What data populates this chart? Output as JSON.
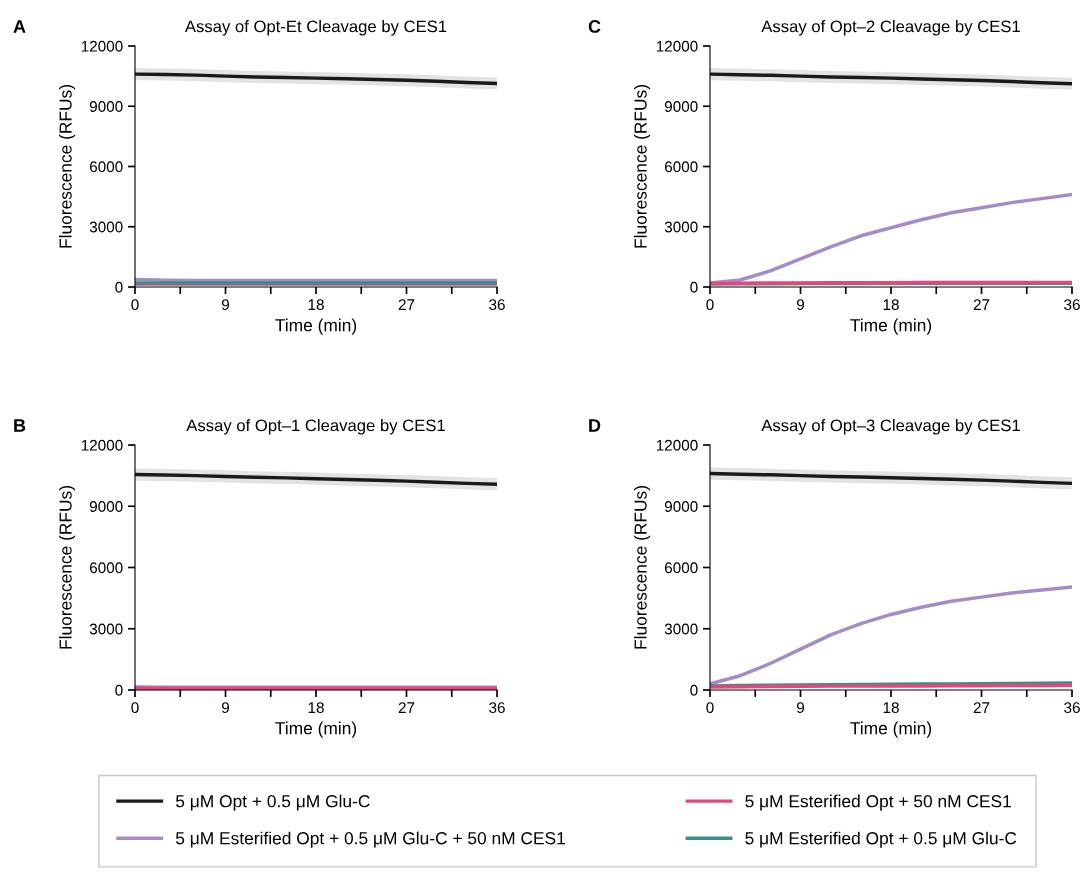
{
  "chart_data": [
    {
      "type": "line",
      "title": "Assay of Opt-Et Cleavage by CES1",
      "annotations": [
        "A"
      ],
      "xlabel": "Time (min)",
      "ylabel": "Fluorescence (RFUs)",
      "x": [
        0,
        3,
        6,
        9,
        12,
        15,
        18,
        21,
        24,
        27,
        30,
        33,
        36
      ],
      "xlim": [
        0,
        36
      ],
      "xticks": [
        0,
        {
          "value": 4.5,
          "label": null
        },
        9,
        {
          "value": 13.5,
          "label": null
        },
        18,
        {
          "value": 22.5,
          "label": null
        },
        27,
        {
          "value": 31.5,
          "label": null
        },
        36
      ],
      "ylim": [
        0,
        12000
      ],
      "yticks": [
        0,
        3000,
        6000,
        9000,
        12000
      ],
      "legend": "bottom",
      "series": [
        {
          "name": "5 μM Opt + 0.5 μM Glu-C",
          "color": "#1a1a1a",
          "values": [
            10600,
            10580,
            10550,
            10500,
            10460,
            10430,
            10400,
            10370,
            10330,
            10290,
            10240,
            10180,
            10130
          ],
          "lower": [
            10300,
            10280,
            10250,
            10200,
            10160,
            10130,
            10100,
            10070,
            10030,
            9990,
            9940,
            9880,
            9830
          ],
          "upper": [
            10900,
            10880,
            10850,
            10800,
            10760,
            10730,
            10700,
            10670,
            10630,
            10590,
            10540,
            10480,
            10430
          ]
        },
        {
          "name": "5 μM Esterified Opt + 0.5 μM Glu-C + 50 nM CES1",
          "color": "#a58bc8",
          "values": [
            380,
            340,
            330,
            330,
            330,
            330,
            330,
            330,
            330,
            330,
            330,
            330,
            330
          ]
        },
        {
          "name": "5 μM Esterified Opt + 50 nM CES1",
          "color": "#e8457f",
          "values": [
            150,
            150,
            150,
            150,
            150,
            150,
            150,
            150,
            150,
            150,
            150,
            150,
            150
          ]
        },
        {
          "name": "5 μM Esterified Opt + 0.5 μM Glu-C",
          "color": "#3a8f87",
          "values": [
            200,
            200,
            200,
            200,
            200,
            200,
            200,
            200,
            200,
            200,
            200,
            200,
            200
          ]
        }
      ]
    },
    {
      "type": "line",
      "title": "Assay of Opt–2 Cleavage by CES1",
      "annotations": [
        "C"
      ],
      "xlabel": "Time (min)",
      "ylabel": "Fluorescence (RFUs)",
      "x": [
        0,
        3,
        6,
        9,
        12,
        15,
        18,
        21,
        24,
        27,
        30,
        33,
        36
      ],
      "xlim": [
        0,
        36
      ],
      "xticks": [
        0,
        {
          "value": 4.5,
          "label": null
        },
        9,
        {
          "value": 13.5,
          "label": null
        },
        18,
        {
          "value": 22.5,
          "label": null
        },
        27,
        {
          "value": 31.5,
          "label": null
        },
        36
      ],
      "ylim": [
        0,
        12000
      ],
      "yticks": [
        0,
        3000,
        6000,
        9000,
        12000
      ],
      "series": [
        {
          "color": "#1a1a1a",
          "values": [
            10600,
            10570,
            10540,
            10500,
            10460,
            10430,
            10400,
            10360,
            10320,
            10280,
            10230,
            10170,
            10120
          ],
          "lower": [
            10300,
            10270,
            10240,
            10200,
            10160,
            10130,
            10100,
            10060,
            10020,
            9980,
            9930,
            9870,
            9820
          ],
          "upper": [
            10900,
            10870,
            10840,
            10800,
            10760,
            10730,
            10700,
            10660,
            10620,
            10580,
            10530,
            10470,
            10420
          ]
        },
        {
          "color": "#a58bc8",
          "values": [
            200,
            350,
            800,
            1400,
            2000,
            2550,
            2950,
            3350,
            3700,
            3950,
            4200,
            4400,
            4600
          ]
        },
        {
          "color": "#3a8f87",
          "values": [
            150,
            160,
            160,
            170,
            170,
            170,
            180,
            180,
            180,
            180,
            190,
            190,
            190
          ]
        },
        {
          "color": "#e8457f",
          "values": [
            180,
            190,
            200,
            200,
            210,
            210,
            210,
            220,
            220,
            220,
            220,
            230,
            230
          ]
        }
      ]
    },
    {
      "type": "line",
      "title": "Assay of Opt–1 Cleavage by CES1",
      "annotations": [
        "B"
      ],
      "xlabel": "Time (min)",
      "ylabel": "Fluorescence (RFUs)",
      "x": [
        0,
        3,
        6,
        9,
        12,
        15,
        18,
        21,
        24,
        27,
        30,
        33,
        36
      ],
      "xlim": [
        0,
        36
      ],
      "xticks": [
        0,
        {
          "value": 4.5,
          "label": null
        },
        9,
        {
          "value": 13.5,
          "label": null
        },
        18,
        {
          "value": 22.5,
          "label": null
        },
        27,
        {
          "value": 31.5,
          "label": null
        },
        36
      ],
      "ylim": [
        0,
        12000
      ],
      "yticks": [
        0,
        3000,
        6000,
        9000,
        12000
      ],
      "series": [
        {
          "color": "#1a1a1a",
          "values": [
            10550,
            10530,
            10500,
            10460,
            10420,
            10390,
            10350,
            10310,
            10270,
            10230,
            10180,
            10120,
            10080
          ],
          "lower": [
            10250,
            10230,
            10200,
            10160,
            10120,
            10090,
            10050,
            10010,
            9970,
            9930,
            9880,
            9820,
            9780
          ],
          "upper": [
            10850,
            10830,
            10800,
            10760,
            10720,
            10690,
            10650,
            10610,
            10570,
            10530,
            10480,
            10420,
            10380
          ]
        },
        {
          "color": "#a58bc8",
          "values": [
            150,
            140,
            140,
            140,
            140,
            140,
            140,
            140,
            140,
            140,
            140,
            140,
            140
          ]
        },
        {
          "color": "#e8457f",
          "values": [
            90,
            90,
            90,
            90,
            90,
            90,
            90,
            90,
            90,
            90,
            90,
            90,
            90
          ]
        }
      ]
    },
    {
      "type": "line",
      "title": "Assay of Opt–3 Cleavage by CES1",
      "annotations": [
        "D"
      ],
      "xlabel": "Time (min)",
      "ylabel": "Fluorescence (RFUs)",
      "x": [
        0,
        3,
        6,
        9,
        12,
        15,
        18,
        21,
        24,
        27,
        30,
        33,
        36
      ],
      "xlim": [
        0,
        36
      ],
      "xticks": [
        0,
        {
          "value": 4.5,
          "label": null
        },
        9,
        {
          "value": 13.5,
          "label": null
        },
        18,
        {
          "value": 22.5,
          "label": null
        },
        27,
        {
          "value": 31.5,
          "label": null
        },
        36
      ],
      "ylim": [
        0,
        12000
      ],
      "yticks": [
        0,
        3000,
        6000,
        9000,
        12000
      ],
      "series": [
        {
          "color": "#1a1a1a",
          "values": [
            10600,
            10570,
            10540,
            10500,
            10460,
            10430,
            10400,
            10360,
            10320,
            10280,
            10230,
            10170,
            10120
          ],
          "lower": [
            10300,
            10270,
            10240,
            10200,
            10160,
            10130,
            10100,
            10060,
            10020,
            9980,
            9930,
            9870,
            9820
          ],
          "upper": [
            10900,
            10870,
            10840,
            10800,
            10760,
            10730,
            10700,
            10660,
            10620,
            10580,
            10530,
            10470,
            10420
          ]
        },
        {
          "color": "#a58bc8",
          "values": [
            300,
            700,
            1300,
            2000,
            2700,
            3250,
            3700,
            4050,
            4350,
            4550,
            4750,
            4900,
            5050
          ]
        },
        {
          "color": "#3a8f87",
          "values": [
            200,
            220,
            230,
            250,
            260,
            270,
            280,
            290,
            300,
            310,
            320,
            330,
            340
          ]
        },
        {
          "color": "#e8457f",
          "values": [
            150,
            160,
            170,
            180,
            190,
            190,
            200,
            200,
            210,
            210,
            220,
            220,
            230
          ]
        }
      ]
    }
  ]
}
